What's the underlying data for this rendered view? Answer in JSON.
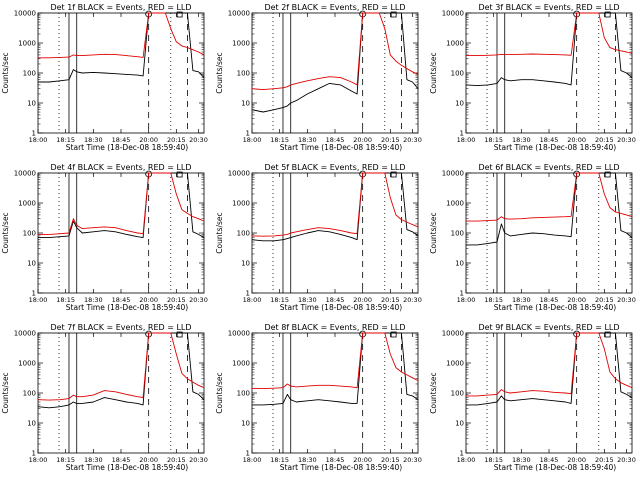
{
  "figure": {
    "xlabel": "Start Time (18-Dec-08 18:59:40)",
    "ylabel": "Counts/sec",
    "x_ticks": [
      "18:00",
      "18:15",
      "18:30",
      "18:45",
      "20:00",
      "20:15",
      "20:30"
    ],
    "y_ticks": [
      "1",
      "10",
      "100",
      "1000",
      "10000"
    ],
    "colors": {
      "events": "#000000",
      "lld": "#e00000"
    }
  },
  "chart_data": [
    {
      "type": "line",
      "title": "Det 1f BLACK = Events, RED = LLD",
      "xlabel": "Start Time (18-Dec-08 18:59:40)",
      "ylabel": "Counts/sec",
      "xlim": [
        0,
        150
      ],
      "ylim": [
        1,
        10000
      ],
      "yscale": "log",
      "x": [
        0,
        10,
        20,
        28,
        32,
        35,
        40,
        50,
        60,
        70,
        80,
        90,
        95,
        100,
        104,
        110,
        115,
        120,
        125,
        130,
        135,
        140,
        145,
        150
      ],
      "series": [
        {
          "name": "Events",
          "values": [
            50,
            50,
            55,
            60,
            130,
            110,
            100,
            105,
            100,
            95,
            90,
            85,
            80,
            10000,
            10000,
            10000,
            10000,
            10000,
            10000,
            10000,
            10000,
            120,
            110,
            70
          ]
        },
        {
          "name": "LLD",
          "values": [
            320,
            320,
            330,
            340,
            400,
            380,
            380,
            400,
            420,
            410,
            380,
            350,
            330,
            10000,
            10000,
            10000,
            10000,
            3000,
            1100,
            800,
            700,
            600,
            500,
            400
          ]
        }
      ]
    },
    {
      "type": "line",
      "title": "Det 2f BLACK = Events, RED = LLD",
      "xlabel": "Start Time (18-Dec-08 18:59:40)",
      "ylabel": "Counts/sec",
      "xlim": [
        0,
        150
      ],
      "ylim": [
        1,
        10000
      ],
      "yscale": "log",
      "x": [
        0,
        10,
        20,
        28,
        32,
        35,
        40,
        50,
        60,
        70,
        80,
        90,
        95,
        100,
        104,
        110,
        115,
        120,
        125,
        130,
        135,
        140,
        145,
        150
      ],
      "series": [
        {
          "name": "Events",
          "values": [
            6,
            5,
            6,
            7,
            8,
            10,
            12,
            20,
            30,
            45,
            40,
            25,
            20,
            10000,
            10000,
            10000,
            10000,
            10000,
            10000,
            10000,
            10000,
            60,
            50,
            30
          ]
        },
        {
          "name": "LLD",
          "values": [
            30,
            28,
            30,
            32,
            35,
            40,
            45,
            55,
            65,
            75,
            70,
            50,
            40,
            10000,
            10000,
            10000,
            10000,
            3000,
            400,
            250,
            180,
            140,
            110,
            90
          ]
        }
      ]
    },
    {
      "type": "line",
      "title": "Det 3f BLACK = Events, RED = LLD",
      "xlabel": "Start Time (18-Dec-08 18:59:40)",
      "ylabel": "Counts/sec",
      "xlim": [
        0,
        150
      ],
      "ylim": [
        1,
        10000
      ],
      "yscale": "log",
      "x": [
        0,
        10,
        20,
        28,
        32,
        35,
        40,
        50,
        60,
        70,
        80,
        90,
        95,
        100,
        104,
        110,
        115,
        120,
        125,
        130,
        135,
        140,
        145,
        150
      ],
      "series": [
        {
          "name": "Events",
          "values": [
            40,
            38,
            40,
            45,
            70,
            60,
            55,
            60,
            60,
            55,
            50,
            45,
            40,
            10000,
            10000,
            10000,
            10000,
            10000,
            10000,
            10000,
            10000,
            120,
            100,
            70
          ]
        },
        {
          "name": "LLD",
          "values": [
            380,
            380,
            390,
            400,
            420,
            410,
            410,
            420,
            430,
            420,
            410,
            400,
            390,
            10000,
            10000,
            10000,
            10000,
            10000,
            1500,
            700,
            600,
            550,
            500,
            450
          ]
        }
      ]
    },
    {
      "type": "line",
      "title": "Det 4f BLACK = Events, RED = LLD",
      "xlabel": "Start Time (18-Dec-08 18:59:40)",
      "ylabel": "Counts/sec",
      "xlim": [
        0,
        150
      ],
      "ylim": [
        1,
        10000
      ],
      "yscale": "log",
      "x": [
        0,
        10,
        20,
        28,
        32,
        35,
        40,
        50,
        60,
        70,
        80,
        90,
        95,
        100,
        104,
        110,
        115,
        120,
        125,
        130,
        135,
        140,
        145,
        150
      ],
      "series": [
        {
          "name": "Events",
          "values": [
            70,
            70,
            75,
            80,
            250,
            150,
            100,
            110,
            120,
            110,
            90,
            75,
            70,
            10000,
            10000,
            10000,
            10000,
            10000,
            10000,
            10000,
            10000,
            110,
            90,
            70
          ]
        },
        {
          "name": "LLD",
          "values": [
            90,
            90,
            95,
            100,
            300,
            180,
            140,
            150,
            160,
            150,
            120,
            100,
            95,
            10000,
            10000,
            10000,
            10000,
            10000,
            2000,
            600,
            450,
            350,
            300,
            250
          ]
        }
      ]
    },
    {
      "type": "line",
      "title": "Det 5f BLACK = Events, RED = LLD",
      "xlabel": "Start Time (18-Dec-08 18:59:40)",
      "ylabel": "Counts/sec",
      "xlim": [
        0,
        150
      ],
      "ylim": [
        1,
        10000
      ],
      "yscale": "log",
      "x": [
        0,
        10,
        20,
        28,
        32,
        35,
        40,
        50,
        60,
        70,
        80,
        90,
        95,
        100,
        104,
        110,
        115,
        120,
        125,
        130,
        135,
        140,
        145,
        150
      ],
      "series": [
        {
          "name": "Events",
          "values": [
            60,
            55,
            55,
            60,
            65,
            70,
            80,
            100,
            120,
            110,
            90,
            70,
            60,
            10000,
            10000,
            10000,
            10000,
            10000,
            10000,
            10000,
            10000,
            130,
            110,
            80
          ]
        },
        {
          "name": "LLD",
          "values": [
            80,
            78,
            80,
            85,
            90,
            100,
            110,
            130,
            150,
            140,
            120,
            100,
            95,
            10000,
            10000,
            10000,
            10000,
            10000,
            1500,
            400,
            280,
            230,
            190,
            160
          ]
        }
      ]
    },
    {
      "type": "line",
      "title": "Det 6f BLACK = Events, RED = LLD",
      "xlabel": "Start Time (18-Dec-08 18:59:40)",
      "ylabel": "Counts/sec",
      "xlim": [
        0,
        150
      ],
      "ylim": [
        1,
        10000
      ],
      "yscale": "log",
      "x": [
        0,
        10,
        20,
        28,
        32,
        35,
        40,
        50,
        60,
        70,
        80,
        90,
        95,
        100,
        104,
        110,
        115,
        120,
        125,
        130,
        135,
        140,
        145,
        150
      ],
      "series": [
        {
          "name": "Events",
          "values": [
            40,
            40,
            45,
            50,
            200,
            100,
            80,
            90,
            100,
            95,
            85,
            80,
            75,
            10000,
            10000,
            10000,
            10000,
            10000,
            10000,
            10000,
            10000,
            120,
            100,
            70
          ]
        },
        {
          "name": "LLD",
          "values": [
            250,
            250,
            260,
            270,
            350,
            300,
            290,
            300,
            320,
            330,
            340,
            350,
            360,
            10000,
            10000,
            10000,
            10000,
            10000,
            2000,
            700,
            500,
            450,
            400,
            350
          ]
        }
      ]
    },
    {
      "type": "line",
      "title": "Det 7f BLACK = Events, RED = LLD",
      "xlabel": "Start Time (18-Dec-08 18:59:40)",
      "ylabel": "Counts/sec",
      "xlim": [
        0,
        150
      ],
      "ylim": [
        1,
        10000
      ],
      "yscale": "log",
      "x": [
        0,
        10,
        20,
        28,
        32,
        35,
        40,
        50,
        60,
        70,
        80,
        90,
        95,
        100,
        104,
        110,
        115,
        120,
        125,
        130,
        135,
        140,
        145,
        150
      ],
      "series": [
        {
          "name": "Events",
          "values": [
            35,
            32,
            35,
            40,
            50,
            45,
            45,
            50,
            70,
            60,
            50,
            45,
            40,
            10000,
            10000,
            10000,
            10000,
            10000,
            10000,
            10000,
            10000,
            110,
            90,
            60
          ]
        },
        {
          "name": "LLD",
          "values": [
            60,
            58,
            60,
            65,
            85,
            75,
            75,
            85,
            120,
            110,
            90,
            75,
            70,
            10000,
            10000,
            10000,
            10000,
            10000,
            2000,
            450,
            300,
            230,
            180,
            150
          ]
        }
      ]
    },
    {
      "type": "line",
      "title": "Det 8f BLACK = Events, RED = LLD",
      "xlabel": "Start Time (18-Dec-08 18:59:40)",
      "ylabel": "Counts/sec",
      "xlim": [
        0,
        150
      ],
      "ylim": [
        1,
        10000
      ],
      "yscale": "log",
      "x": [
        0,
        10,
        20,
        28,
        32,
        35,
        40,
        50,
        60,
        70,
        80,
        90,
        95,
        100,
        104,
        110,
        115,
        120,
        125,
        130,
        135,
        140,
        145,
        150
      ],
      "series": [
        {
          "name": "Events",
          "values": [
            40,
            40,
            42,
            45,
            90,
            60,
            50,
            55,
            60,
            55,
            50,
            45,
            45,
            10000,
            10000,
            10000,
            10000,
            10000,
            10000,
            10000,
            10000,
            90,
            80,
            60
          ]
        },
        {
          "name": "LLD",
          "values": [
            140,
            140,
            145,
            150,
            200,
            170,
            160,
            170,
            180,
            180,
            170,
            160,
            150,
            10000,
            10000,
            10000,
            10000,
            10000,
            2000,
            700,
            500,
            400,
            320,
            260
          ]
        }
      ]
    },
    {
      "type": "line",
      "title": "Det 9f BLACK = Events, RED = LLD",
      "xlabel": "Start Time (18-Dec-08 18:59:40)",
      "ylabel": "Counts/sec",
      "xlim": [
        0,
        150
      ],
      "ylim": [
        1,
        10000
      ],
      "yscale": "log",
      "x": [
        0,
        10,
        20,
        28,
        32,
        35,
        40,
        50,
        60,
        70,
        80,
        90,
        95,
        100,
        104,
        110,
        115,
        120,
        125,
        130,
        135,
        140,
        145,
        150
      ],
      "series": [
        {
          "name": "Events",
          "values": [
            40,
            40,
            45,
            50,
            80,
            60,
            55,
            60,
            65,
            60,
            55,
            50,
            45,
            10000,
            10000,
            10000,
            10000,
            10000,
            10000,
            10000,
            10000,
            110,
            90,
            70
          ]
        },
        {
          "name": "LLD",
          "values": [
            80,
            80,
            85,
            90,
            130,
            110,
            100,
            110,
            120,
            115,
            105,
            100,
            95,
            10000,
            10000,
            10000,
            10000,
            10000,
            3000,
            500,
            300,
            220,
            180,
            150
          ]
        }
      ]
    }
  ]
}
